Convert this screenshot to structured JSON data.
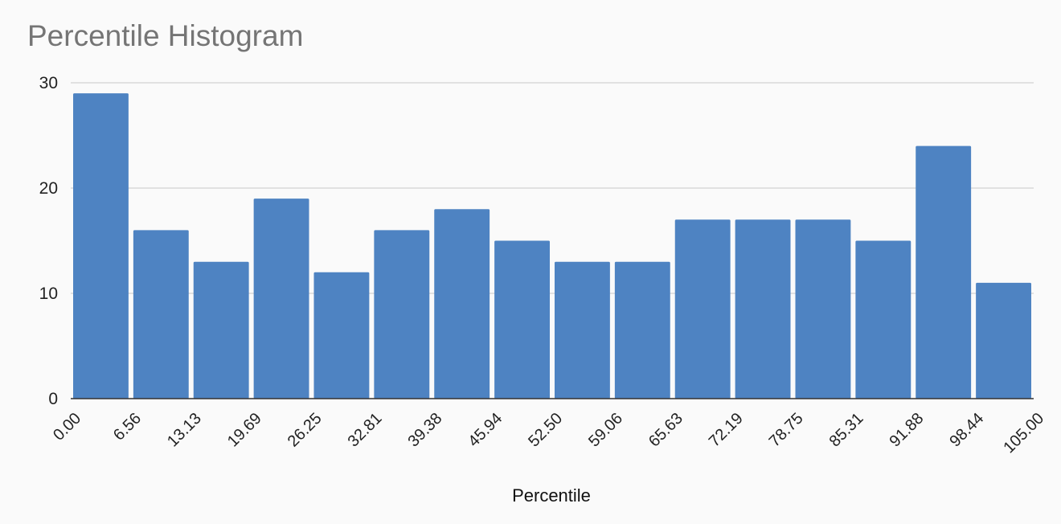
{
  "chart_data": {
    "type": "bar",
    "title": "Percentile Histogram",
    "xlabel": "Percentile",
    "ylabel": "",
    "ylim": [
      0,
      30
    ],
    "yticks": [
      "0",
      "10",
      "20",
      "30"
    ],
    "bin_edges": [
      "0.00",
      "6.56",
      "13.13",
      "19.69",
      "26.25",
      "32.81",
      "39.38",
      "45.94",
      "52.50",
      "59.06",
      "65.63",
      "72.19",
      "78.75",
      "85.31",
      "91.88",
      "98.44",
      "105.00"
    ],
    "values": [
      29,
      16,
      13,
      19,
      12,
      16,
      18,
      15,
      13,
      13,
      17,
      17,
      17,
      15,
      24,
      11
    ],
    "bar_color": "#4e83c2",
    "grid": true,
    "legend": "none"
  }
}
